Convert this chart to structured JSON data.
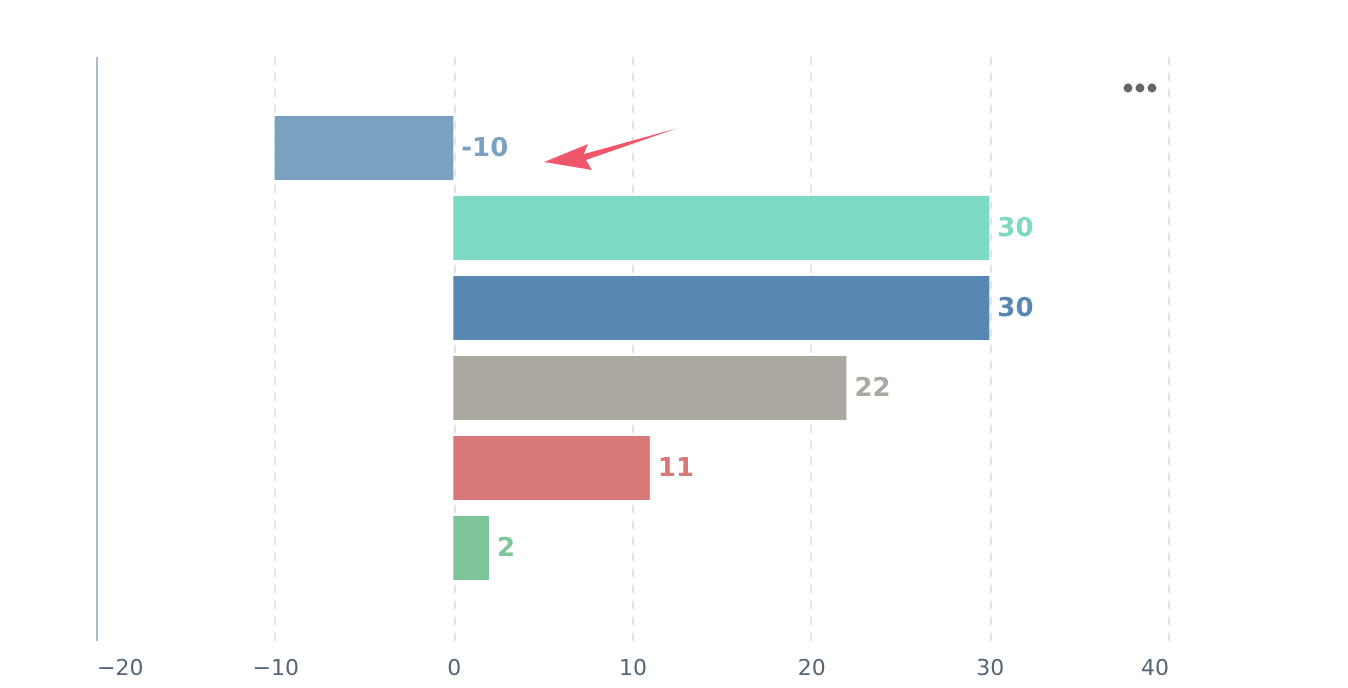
{
  "chart_data": {
    "type": "bar",
    "orientation": "horizontal",
    "categories": [
      null,
      null,
      null,
      null,
      null,
      null
    ],
    "values": [
      -10,
      30,
      30,
      22,
      11,
      2
    ],
    "colors": [
      "#7aa2c0",
      "#7cdac3",
      "#5787b2",
      "#aaa8a0",
      "#d97878",
      "#80c49a"
    ],
    "xlim": [
      -20,
      40
    ],
    "xticks": [
      -20,
      -10,
      0,
      10,
      20,
      30,
      40
    ],
    "grid": "x",
    "data_labels": true
  }
}
